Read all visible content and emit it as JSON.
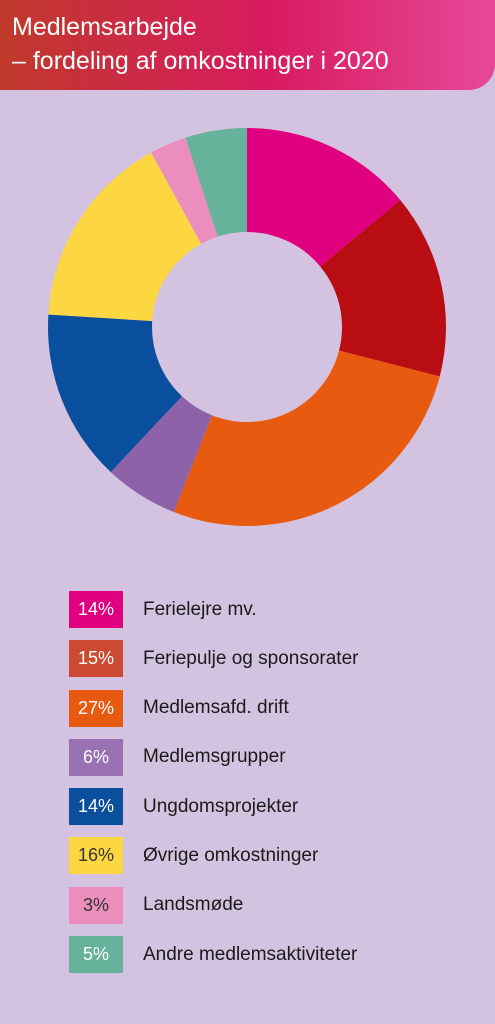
{
  "header": {
    "title_line1": "Medlemsarbejde",
    "title_line2": "– fordeling af omkostninger i 2020"
  },
  "colors": {
    "background": "#d4c3e0",
    "header_gradient": [
      "#c0392b",
      "#d81b60",
      "#e6499a"
    ]
  },
  "chart_data": {
    "type": "pie",
    "donut": true,
    "title": "Medlemsarbejde – fordeling af omkostninger i 2020",
    "start": "top",
    "direction": "clockwise",
    "legend_position": "bottom",
    "slices": [
      {
        "label": "Ferielejre mv.",
        "value": 14,
        "value_label": "14%",
        "color": "#e0007f",
        "text_color": "#ffffff"
      },
      {
        "label": "Feriepulje og sponsorater",
        "value": 15,
        "value_label": "15%",
        "color": "#b80d12",
        "swatch_color": "#cc4a32",
        "text_color": "#ffffff"
      },
      {
        "label": "Medlemsafd. drift",
        "value": 27,
        "value_label": "27%",
        "color": "#e85a10",
        "text_color": "#ffffff"
      },
      {
        "label": "Medlemsgrupper",
        "value": 6,
        "value_label": "6%",
        "color": "#8e62a8",
        "swatch_color": "#9a72b4",
        "text_color": "#ffffff"
      },
      {
        "label": "Ungdomsprojekter",
        "value": 14,
        "value_label": "14%",
        "color": "#0a4f9e",
        "text_color": "#ffffff"
      },
      {
        "label": "Øvrige omkostninger",
        "value": 16,
        "value_label": "16%",
        "color": "#fdd742",
        "text_color": "#333333"
      },
      {
        "label": "Landsmøde",
        "value": 3,
        "value_label": "3%",
        "color": "#eb8dbd",
        "text_color": "#333333"
      },
      {
        "label": "Andre medlemsaktiviteter",
        "value": 5,
        "value_label": "5%",
        "color": "#67b29a",
        "text_color": "#ffffff"
      }
    ]
  }
}
